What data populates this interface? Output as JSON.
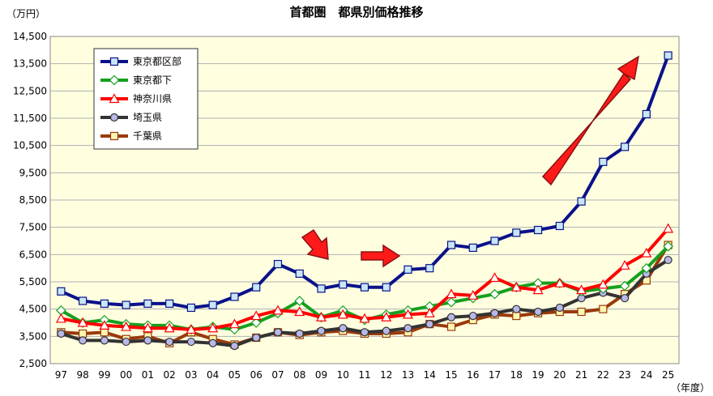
{
  "chart_data": {
    "type": "line",
    "title": "首都圏　都県別価格推移",
    "ylabel": "（万円）",
    "xlabel": "（年度）",
    "ylim": [
      2500,
      14500
    ],
    "yticks": [
      2500,
      3500,
      4500,
      5500,
      6500,
      7500,
      8500,
      9500,
      10500,
      11500,
      12500,
      13500,
      14500
    ],
    "ytick_labels": [
      "2,500",
      "3,500",
      "4,500",
      "5,500",
      "6,500",
      "7,500",
      "8,500",
      "9,500",
      "10,500",
      "11,500",
      "12,500",
      "13,500",
      "14,500"
    ],
    "categories": [
      "97",
      "98",
      "99",
      "00",
      "01",
      "02",
      "03",
      "04",
      "05",
      "06",
      "07",
      "08",
      "09",
      "10",
      "11",
      "12",
      "13",
      "14",
      "15",
      "16",
      "17",
      "18",
      "19",
      "20",
      "21",
      "22",
      "23",
      "24",
      "25"
    ],
    "grid": true,
    "legend_position": "top-left",
    "series": [
      {
        "name": "東京都区部",
        "color": "#0a128a",
        "marker": "square",
        "marker_fill": "#c8e6f7",
        "values": [
          5150,
          4800,
          4700,
          4650,
          4700,
          4700,
          4550,
          4650,
          4950,
          5300,
          6150,
          5800,
          5250,
          5400,
          5300,
          5300,
          5950,
          6000,
          6850,
          6750,
          7000,
          7300,
          7400,
          7550,
          8450,
          9900,
          10450,
          11650,
          13800
        ]
      },
      {
        "name": "東京都下",
        "color": "#15a01e",
        "marker": "diamond",
        "marker_fill": "#ffffff",
        "values": [
          4450,
          4000,
          4100,
          3950,
          3900,
          3900,
          3750,
          3850,
          3750,
          4000,
          4350,
          4800,
          4200,
          4450,
          4100,
          4300,
          4450,
          4600,
          4750,
          4900,
          5050,
          5300,
          5450,
          5450,
          5150,
          5250,
          5350,
          6000,
          6800
        ]
      },
      {
        "name": "神奈川県",
        "color": "#ff0000",
        "marker": "triangle",
        "marker_fill": "#ffffff",
        "values": [
          4150,
          4000,
          3900,
          3850,
          3800,
          3800,
          3750,
          3800,
          3950,
          4250,
          4450,
          4400,
          4200,
          4300,
          4150,
          4200,
          4300,
          4350,
          5050,
          5000,
          5650,
          5300,
          5200,
          5450,
          5200,
          5400,
          6100,
          6550,
          7450
        ]
      },
      {
        "name": "埼玉県",
        "color": "#333333",
        "marker": "circle",
        "marker_fill": "#b8b8e8",
        "values": [
          3600,
          3350,
          3350,
          3300,
          3350,
          3300,
          3300,
          3250,
          3150,
          3450,
          3650,
          3600,
          3700,
          3800,
          3650,
          3700,
          3800,
          3950,
          4200,
          4250,
          4350,
          4500,
          4400,
          4550,
          4900,
          5100,
          4900,
          5800,
          6300
        ]
      },
      {
        "name": "千葉県",
        "color": "#9a3a0c",
        "marker": "square",
        "marker_fill": "#fff6b0",
        "values": [
          3650,
          3600,
          3650,
          3400,
          3500,
          3250,
          3650,
          3400,
          3200,
          3450,
          3650,
          3550,
          3650,
          3700,
          3600,
          3600,
          3650,
          3950,
          3850,
          4100,
          4300,
          4250,
          4350,
          4400,
          4400,
          4500,
          5050,
          5550,
          6850
        ]
      }
    ]
  }
}
